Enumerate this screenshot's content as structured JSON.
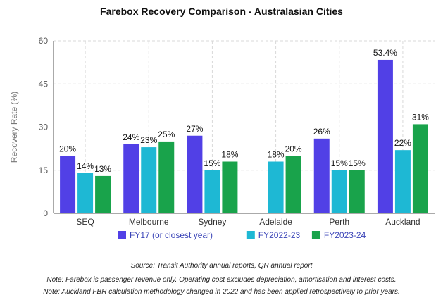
{
  "chart_data": {
    "type": "bar",
    "title": "Farebox Recovery Comparison - Australasian Cities",
    "ylabel": "Recovery Rate (%)",
    "xlabel": "",
    "ylim": [
      0,
      60
    ],
    "yticks": [
      0,
      15,
      30,
      45,
      60
    ],
    "grid": true,
    "legend_position": "bottom",
    "categories": [
      "SEQ",
      "Melbourne",
      "Sydney",
      "Adelaide",
      "Perth",
      "Auckland"
    ],
    "series": [
      {
        "name": "FY17 (or closest year)",
        "color": "#5140e6",
        "values": [
          20,
          24,
          27,
          null,
          26,
          53.4
        ],
        "labels": [
          "20%",
          "24%",
          "27%",
          null,
          "26%",
          "53.4%"
        ]
      },
      {
        "name": "FY2022-23",
        "color": "#1eb8d4",
        "values": [
          14,
          23,
          15,
          18,
          15,
          22
        ],
        "labels": [
          "14%",
          "23%",
          "15%",
          "18%",
          "15%",
          "22%"
        ]
      },
      {
        "name": "FY2023-24",
        "color": "#19a34b",
        "values": [
          13,
          25,
          18,
          20,
          15,
          31
        ],
        "labels": [
          "13%",
          "25%",
          "18%",
          "20%",
          "15%",
          "31%"
        ]
      }
    ]
  },
  "notes": {
    "source": "Source: Transit Authority annual reports, QR annual report",
    "note1": "Note: Farebox is passenger revenue only. Operating cost excludes depreciation, amortisation and interest costs.",
    "note2": "Note: Auckland FBR calculation methodology changed in 2022 and has been applied retrospectively to prior years."
  }
}
